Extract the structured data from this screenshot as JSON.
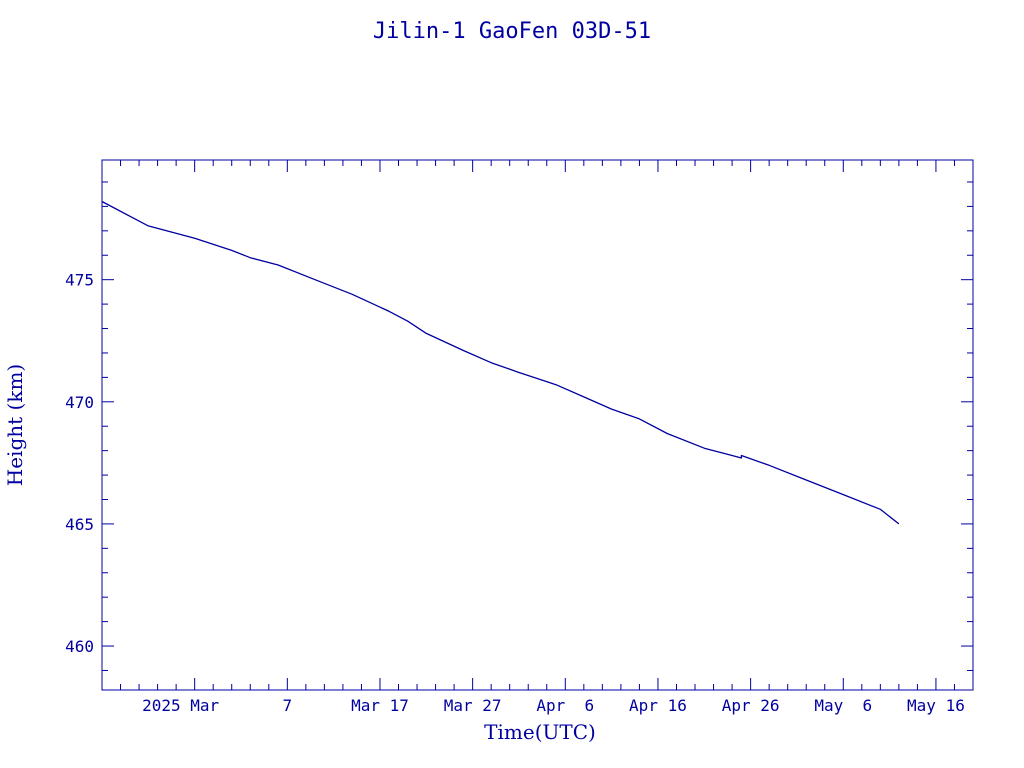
{
  "chart_data": {
    "type": "line",
    "title": "Jilin-1 GaoFen 03D-51",
    "xlabel": "Time(UTC)",
    "ylabel": "Height (km)",
    "color": "#0000a0",
    "x_ticks": [
      {
        "date": "2025-02-25",
        "label": "2025 Mar"
      },
      {
        "date": "2025-03-07",
        "label": "7"
      },
      {
        "date": "2025-03-17",
        "label": "Mar 17"
      },
      {
        "date": "2025-03-27",
        "label": "Mar 27"
      },
      {
        "date": "2025-04-06",
        "label": "Apr  6"
      },
      {
        "date": "2025-04-16",
        "label": "Apr 16"
      },
      {
        "date": "2025-04-26",
        "label": "Apr 26"
      },
      {
        "date": "2025-05-06",
        "label": "May  6"
      },
      {
        "date": "2025-05-16",
        "label": "May 16"
      }
    ],
    "y_ticks": [
      460,
      465,
      470,
      475
    ],
    "xlim": [
      "2025-02-15",
      "2025-05-20"
    ],
    "ylim": [
      458.2,
      479.9
    ],
    "grid": false,
    "series": [
      {
        "points": [
          [
            "2025-02-15",
            478.2
          ],
          [
            "2025-02-18",
            477.6
          ],
          [
            "2025-02-20",
            477.2
          ],
          [
            "2025-02-25",
            476.7
          ],
          [
            "2025-03-01",
            476.2
          ],
          [
            "2025-03-03",
            475.9
          ],
          [
            "2025-03-06",
            475.6
          ],
          [
            "2025-03-10",
            475.0
          ],
          [
            "2025-03-14",
            474.4
          ],
          [
            "2025-03-18",
            473.7
          ],
          [
            "2025-03-20",
            473.3
          ],
          [
            "2025-03-22",
            472.8
          ],
          [
            "2025-03-26",
            472.1
          ],
          [
            "2025-03-29",
            471.6
          ],
          [
            "2025-04-01",
            471.2
          ],
          [
            "2025-04-05",
            470.7
          ],
          [
            "2025-04-08",
            470.2
          ],
          [
            "2025-04-11",
            469.7
          ],
          [
            "2025-04-14",
            469.3
          ],
          [
            "2025-04-17",
            468.7
          ],
          [
            "2025-04-21",
            468.1
          ],
          [
            "2025-04-24",
            467.8
          ],
          [
            "2025-04-25",
            467.7
          ],
          [
            "2025-04-25",
            467.8
          ],
          [
            "2025-04-28",
            467.4
          ],
          [
            "2025-05-02",
            466.8
          ],
          [
            "2025-05-06",
            466.2
          ],
          [
            "2025-05-10",
            465.6
          ],
          [
            "2025-05-12",
            465.0
          ]
        ]
      }
    ]
  }
}
